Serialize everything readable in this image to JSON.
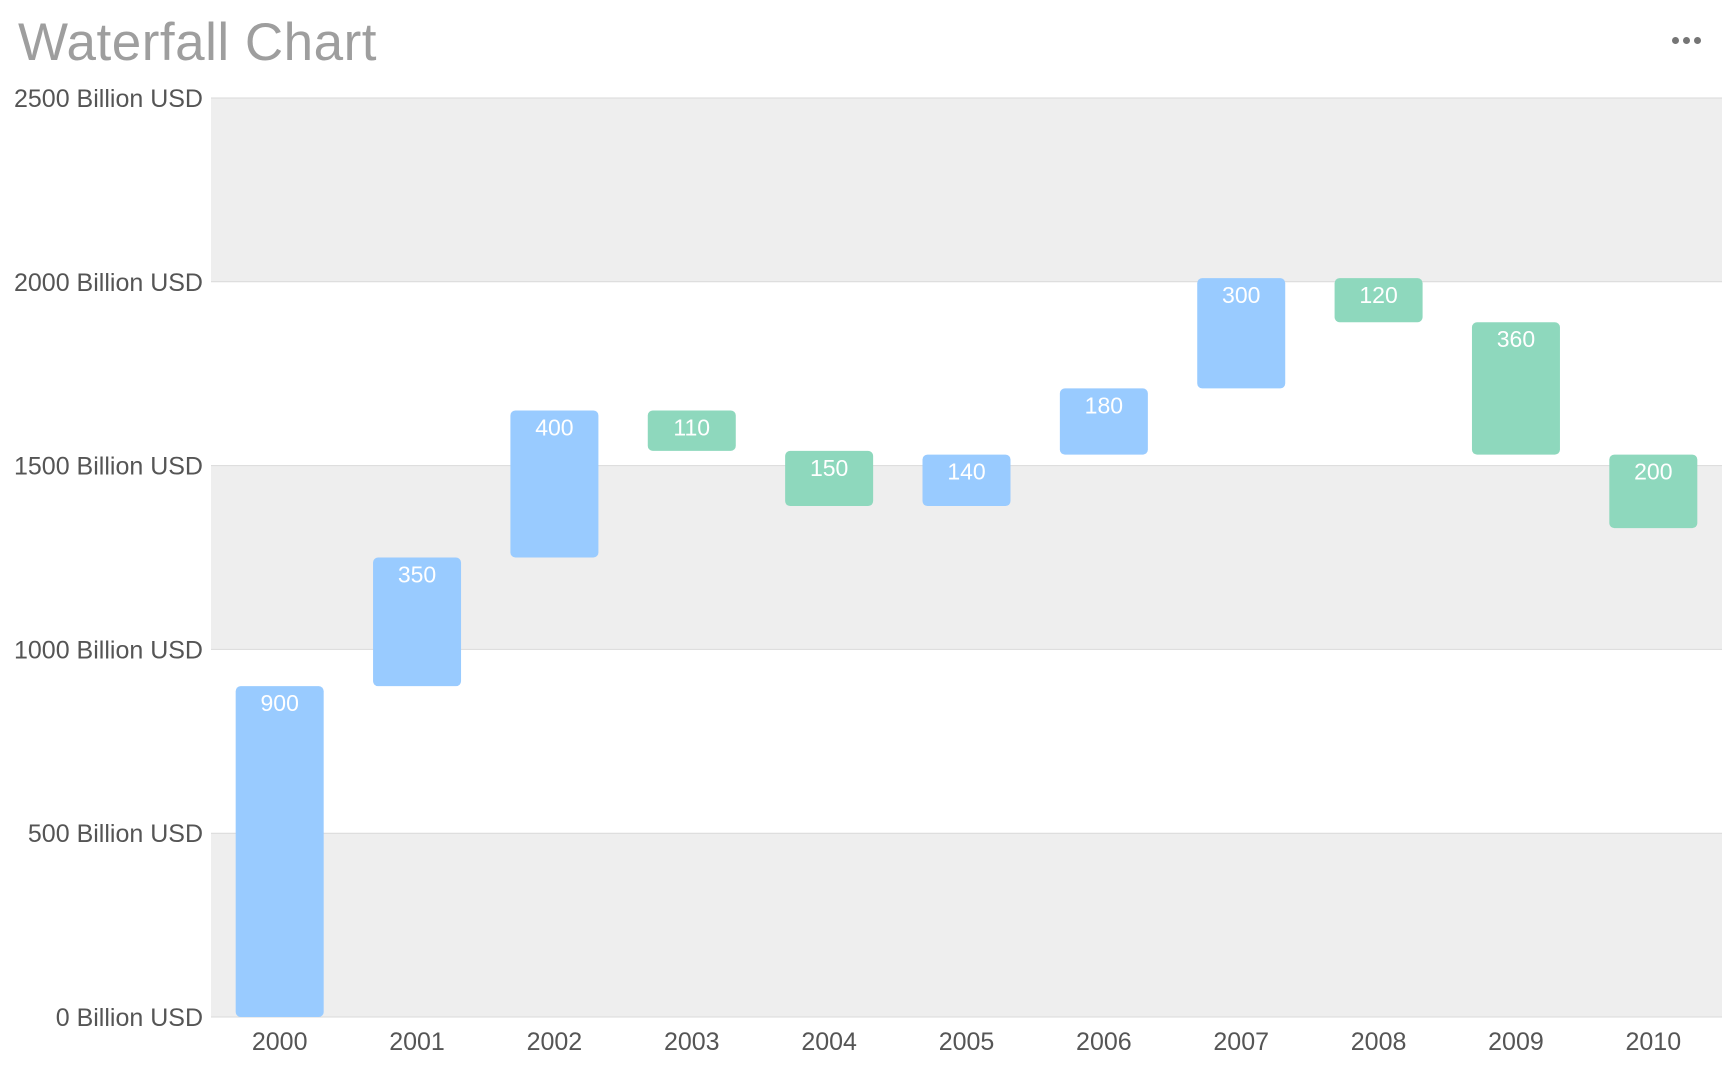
{
  "title": "Waterfall Chart",
  "more_icon": "more-horizontal-icon",
  "chart_data": {
    "type": "bar",
    "subtype": "waterfall",
    "title": "Waterfall Chart",
    "xlabel": "",
    "ylabel": "",
    "ylim": [
      0,
      2500
    ],
    "y_ticks": [
      0,
      500,
      1000,
      1500,
      2000,
      2500
    ],
    "y_tick_labels": [
      "0 Billion USD",
      "500 Billion USD",
      "1000 Billion USD",
      "1500 Billion USD",
      "2000 Billion USD",
      "2500 Billion USD"
    ],
    "categories": [
      "2000",
      "2001",
      "2002",
      "2003",
      "2004",
      "2005",
      "2006",
      "2007",
      "2008",
      "2009",
      "2010"
    ],
    "bars": [
      {
        "category": "2000",
        "start": 0,
        "end": 900,
        "value": 900,
        "direction": "increase"
      },
      {
        "category": "2001",
        "start": 900,
        "end": 1250,
        "value": 350,
        "direction": "increase"
      },
      {
        "category": "2002",
        "start": 1250,
        "end": 1650,
        "value": 400,
        "direction": "increase"
      },
      {
        "category": "2003",
        "start": 1650,
        "end": 1540,
        "value": 110,
        "direction": "decrease"
      },
      {
        "category": "2004",
        "start": 1540,
        "end": 1390,
        "value": 150,
        "direction": "decrease"
      },
      {
        "category": "2005",
        "start": 1390,
        "end": 1530,
        "value": 140,
        "direction": "increase"
      },
      {
        "category": "2006",
        "start": 1530,
        "end": 1710,
        "value": 180,
        "direction": "increase"
      },
      {
        "category": "2007",
        "start": 1710,
        "end": 2010,
        "value": 300,
        "direction": "increase"
      },
      {
        "category": "2008",
        "start": 2010,
        "end": 1890,
        "value": 120,
        "direction": "decrease"
      },
      {
        "category": "2009",
        "start": 1890,
        "end": 1530,
        "value": 360,
        "direction": "decrease"
      },
      {
        "category": "2010",
        "start": 1530,
        "end": 1330,
        "value": 200,
        "direction": "decrease"
      }
    ],
    "colors": {
      "increase": "#99cbff",
      "decrease": "#8ed8bd",
      "band": "#eeeeee",
      "gridline": "#d9d9d9",
      "bar_label": "#ffffff"
    },
    "grid": true,
    "legend": "none"
  }
}
